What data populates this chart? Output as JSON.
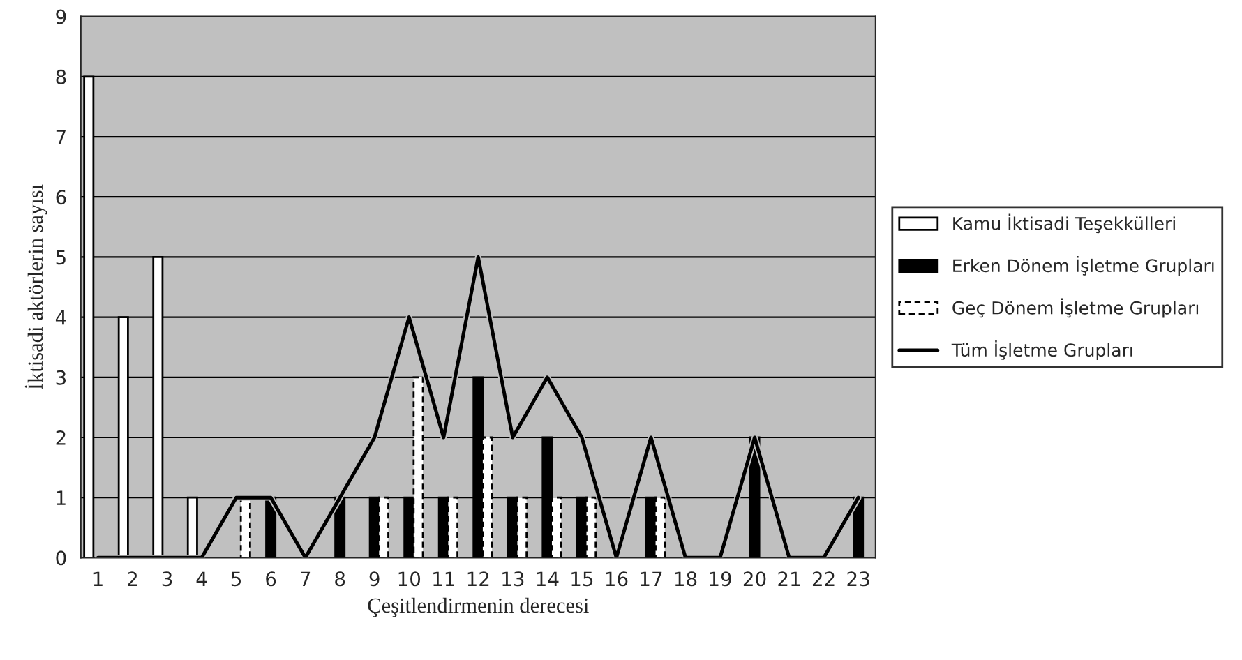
{
  "chart_data": {
    "type": "bar",
    "xlabel": "Çeşitlendirmenin derecesi",
    "ylabel": "İktisadi aktörlerin sayısı",
    "categories": [
      "1",
      "2",
      "3",
      "4",
      "5",
      "6",
      "7",
      "8",
      "9",
      "10",
      "11",
      "12",
      "13",
      "14",
      "15",
      "16",
      "17",
      "18",
      "19",
      "20",
      "21",
      "22",
      "23"
    ],
    "series": [
      {
        "name": "Kamu İktisadi Teşekkülleri",
        "color": "#ffffff",
        "values": [
          8,
          4,
          5,
          1,
          0,
          0,
          0,
          0,
          0,
          0,
          0,
          0,
          0,
          0,
          0,
          0,
          0,
          0,
          0,
          0,
          0,
          0,
          0
        ]
      },
      {
        "name": "Erken Dönem İşletme Grupları",
        "color": "#000000",
        "values": [
          0,
          0,
          0,
          0,
          0,
          1,
          0,
          1,
          1,
          1,
          1,
          3,
          1,
          2,
          1,
          0,
          1,
          0,
          0,
          2,
          0,
          0,
          1
        ]
      },
      {
        "name": "Geç Dönem İşletme Grupları",
        "color": "#ffffff",
        "values": [
          0,
          0,
          0,
          0,
          1,
          0,
          0,
          0,
          1,
          3,
          1,
          2,
          1,
          1,
          1,
          0,
          1,
          0,
          0,
          0,
          0,
          0,
          0
        ]
      },
      {
        "name": "Tüm İşletme Grupları",
        "type": "line",
        "color": "#000000",
        "values": [
          0,
          0,
          0,
          0,
          1,
          1,
          0,
          1,
          2,
          4,
          2,
          5,
          2,
          3,
          2,
          0,
          2,
          0,
          0,
          2,
          0,
          0,
          1
        ]
      }
    ],
    "ylim": [
      0,
      9
    ],
    "yticks": [
      0,
      1,
      2,
      3,
      4,
      5,
      6,
      7,
      8,
      9
    ],
    "grid": "y",
    "legend": "right",
    "line_style": "solid",
    "marker": "none"
  }
}
